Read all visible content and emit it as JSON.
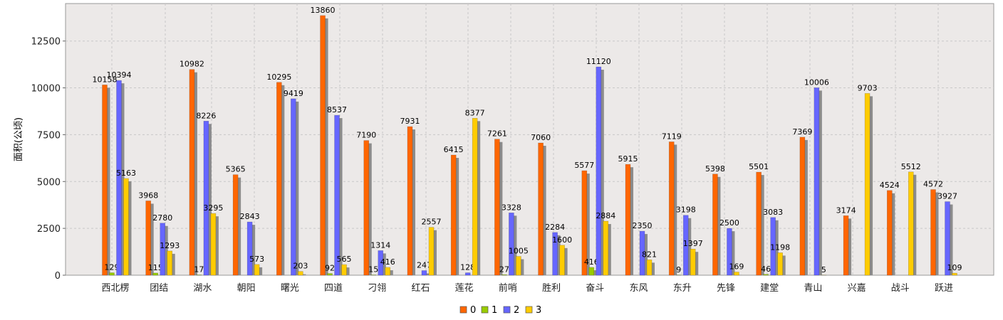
{
  "chart_data": {
    "type": "bar",
    "title": "",
    "xlabel": "",
    "ylabel": "面积(公顷)",
    "ylim": [
      0,
      14500
    ],
    "yticks": [
      0,
      2500,
      5000,
      7500,
      10000,
      12500
    ],
    "grid": true,
    "legend_position": "bottom",
    "categories": [
      "西北楞",
      "团结",
      "湖水",
      "朝阳",
      "曙光",
      "四道",
      "刁翎",
      "红石",
      "莲花",
      "前哨",
      "胜利",
      "奋斗",
      "东风",
      "东升",
      "先锋",
      "建堂",
      "青山",
      "兴嘉",
      "战斗",
      "跃进"
    ],
    "series": [
      {
        "name": "0",
        "color": "#ff6600",
        "values": [
          10158,
          3968,
          10982,
          5365,
          10295,
          13860,
          7190,
          7931,
          6415,
          7261,
          7060,
          5577,
          5915,
          7119,
          5398,
          5501,
          7369,
          3174,
          4524,
          4572
        ]
      },
      {
        "name": "1",
        "color": "#99cc00",
        "values": [
          129,
          115,
          17,
          null,
          null,
          92,
          15,
          null,
          null,
          27,
          null,
          416,
          null,
          9,
          null,
          46,
          null,
          null,
          null,
          null
        ]
      },
      {
        "name": "2",
        "color": "#6666ff",
        "values": [
          10394,
          2780,
          8226,
          2843,
          9419,
          8537,
          1314,
          247,
          128,
          3328,
          2284,
          11120,
          2350,
          3198,
          2500,
          3083,
          10006,
          null,
          null,
          3927
        ]
      },
      {
        "name": "3",
        "color": "#ffcc00",
        "values": [
          5163,
          1293,
          3295,
          573,
          203,
          565,
          416,
          2557,
          8377,
          1005,
          1600,
          2884,
          821,
          1397,
          169,
          1198,
          5,
          9703,
          5512,
          109
        ]
      }
    ]
  }
}
